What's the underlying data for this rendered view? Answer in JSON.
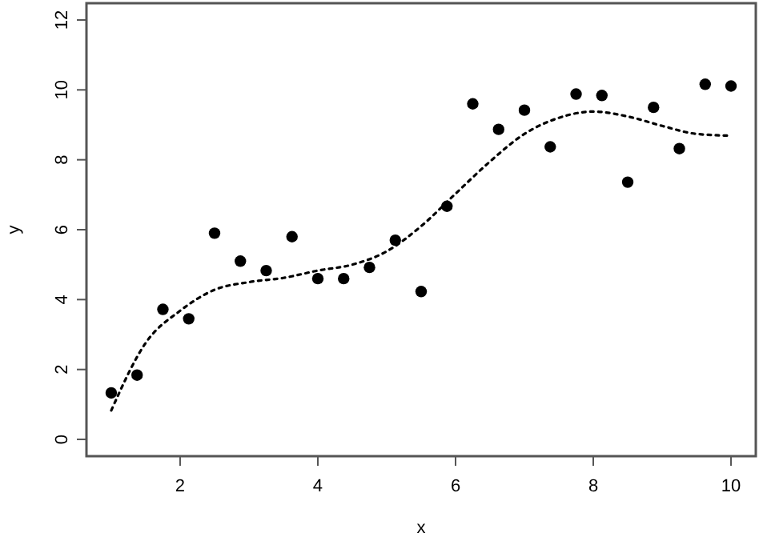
{
  "chart_data": {
    "type": "scatter",
    "xlabel": "x",
    "ylabel": "y",
    "xlim": [
      0.64,
      10.36
    ],
    "ylim": [
      -0.48,
      12.48
    ],
    "xticks": [
      2,
      4,
      6,
      8,
      10
    ],
    "yticks": [
      0,
      2,
      4,
      6,
      8,
      10,
      12
    ],
    "grid": false,
    "series": [
      {
        "color": "#000000",
        "marker": "circle",
        "x": [
          1,
          1.375,
          1.75,
          2.125,
          2.5,
          2.875,
          3.25,
          3.625,
          4,
          4.375,
          4.75,
          5.125,
          5.5,
          5.875,
          6.25,
          6.625,
          7,
          7.375,
          7.75,
          8.125,
          8.5,
          8.875,
          9.25,
          9.625,
          10
        ],
        "values": [
          1.33,
          1.84,
          3.72,
          3.45,
          5.9,
          5.1,
          4.83,
          5.8,
          4.6,
          4.6,
          4.92,
          5.7,
          4.23,
          6.67,
          9.6,
          8.87,
          9.42,
          8.37,
          9.88,
          9.84,
          7.36,
          9.5,
          8.32,
          10.16,
          10.11
        ]
      },
      {
        "type": "line",
        "color": "#000000",
        "line_style": "dotted",
        "marker": "none",
        "x": [
          1,
          1.5,
          2,
          2.5,
          3,
          3.5,
          4,
          4.5,
          5,
          5.5,
          6,
          6.5,
          7,
          7.5,
          8,
          8.5,
          9,
          9.5,
          10
        ],
        "values": [
          0.83,
          2.76,
          3.68,
          4.28,
          4.5,
          4.62,
          4.83,
          5.0,
          5.38,
          6.1,
          7.03,
          7.95,
          8.74,
          9.2,
          9.38,
          9.24,
          8.97,
          8.74,
          8.69
        ]
      }
    ]
  }
}
